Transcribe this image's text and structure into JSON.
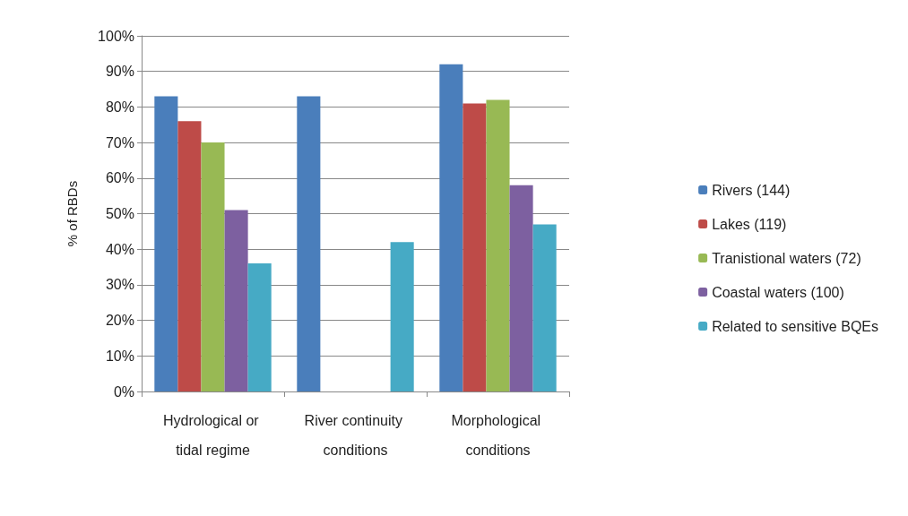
{
  "chart_data": {
    "type": "bar",
    "ylabel": "% of RBDs",
    "categories": [
      "Hydrological or tidal regime",
      "River continuity conditions",
      "Morphological conditions"
    ],
    "series": [
      {
        "name": "Rivers (144)",
        "color": "#4a7ebb",
        "values": [
          83,
          83,
          92
        ]
      },
      {
        "name": "Lakes (119)",
        "color": "#be4b48",
        "values": [
          76,
          null,
          81
        ]
      },
      {
        "name": "Tranistional waters (72)",
        "color": "#98b954",
        "values": [
          70,
          null,
          82
        ]
      },
      {
        "name": "Coastal waters (100)",
        "color": "#7d60a0",
        "values": [
          51,
          null,
          58
        ]
      },
      {
        "name": "Related to sensitive BQEs",
        "color": "#46aac5",
        "values": [
          36,
          42,
          47
        ]
      }
    ],
    "ylim": [
      0,
      100
    ],
    "yticks": [
      {
        "value": 0,
        "label": "0%"
      },
      {
        "value": 10,
        "label": "10%"
      },
      {
        "value": 20,
        "label": "20%"
      },
      {
        "value": 30,
        "label": "30%"
      },
      {
        "value": 40,
        "label": "40%"
      },
      {
        "value": 50,
        "label": "50%"
      },
      {
        "value": 60,
        "label": "60%"
      },
      {
        "value": 70,
        "label": "70%"
      },
      {
        "value": 80,
        "label": "80%"
      },
      {
        "value": 90,
        "label": "90%"
      },
      {
        "value": 100,
        "label": "100%"
      }
    ],
    "grid": "y",
    "legend": "right"
  }
}
